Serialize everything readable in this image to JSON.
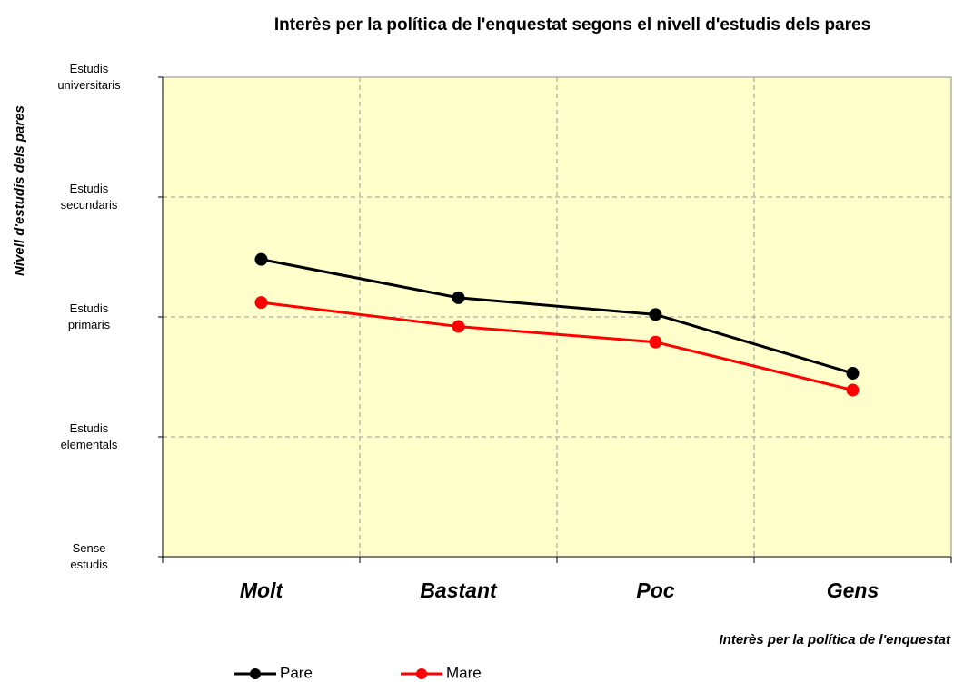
{
  "chart_data": {
    "type": "line",
    "title": "Interès per la política de l'enquestat segons el nivell d'estudis dels pares",
    "x_label": "Interès per la política de l'enquestat",
    "y_label": "Nivell d'estudis dels pares",
    "categories": [
      "Molt",
      "Bastant",
      "Poc",
      "Gens"
    ],
    "series": [
      {
        "name": "Pare",
        "color": "#000000",
        "values": [
          2.48,
          2.16,
          2.02,
          1.53
        ]
      },
      {
        "name": "Mare",
        "color": "#ff0000",
        "values": [
          2.12,
          1.92,
          1.79,
          1.39
        ]
      }
    ],
    "ylim": [
      0,
      4
    ],
    "yticks": [
      {
        "value": 0,
        "label": "Sense estudis"
      },
      {
        "value": 1,
        "label": "Estudis elementals"
      },
      {
        "value": 2,
        "label": "Estudis primaris"
      },
      {
        "value": 3,
        "label": "Estudis secundaris"
      },
      {
        "value": 4,
        "label": "Estudis universitaris"
      }
    ],
    "grid": true,
    "legend": "bottom",
    "background": "#ffffcc"
  }
}
